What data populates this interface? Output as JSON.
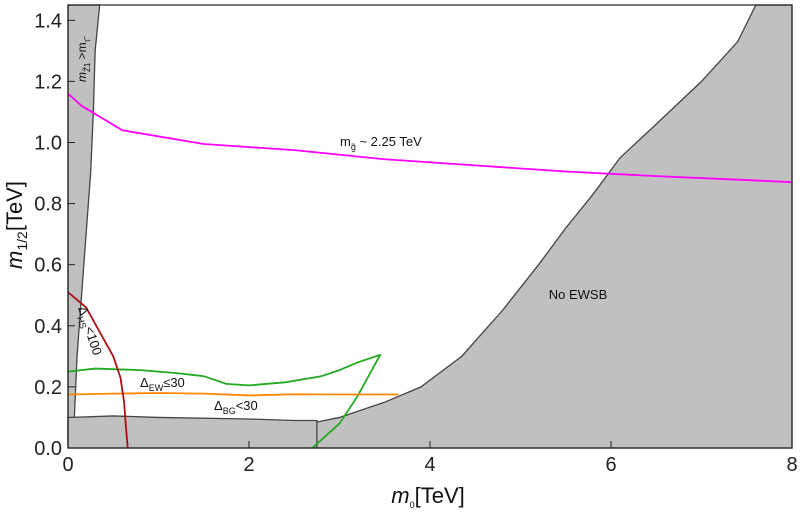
{
  "chart_data": {
    "type": "line",
    "xlabel": "m0[TeV]",
    "ylabel": "m1/2[TeV]",
    "xlim": [
      0,
      8
    ],
    "ylim": [
      0,
      1.45
    ],
    "x_ticks": [
      "0",
      "2",
      "4",
      "6",
      "8"
    ],
    "y_ticks": [
      "0.0",
      "0.2",
      "0.4",
      "0.6",
      "0.8",
      "1.0",
      "1.2",
      "1.4"
    ],
    "grid": false,
    "colors": {
      "excluded": "#c0c0c0",
      "boundary": "#444444",
      "gluino": "#ff00ff",
      "ew": "#22aa22",
      "bg": "#ff8800",
      "hs": "#aa1111"
    },
    "regions": [
      {
        "name": "m_Z1 > m_tau",
        "label": "m̃Z1 > m̃τ",
        "points": [
          [
            0,
            1.45
          ],
          [
            0.35,
            1.45
          ],
          [
            0.3,
            1.3
          ],
          [
            0.28,
            1.1
          ],
          [
            0.25,
            0.9
          ],
          [
            0.2,
            0.7
          ],
          [
            0.15,
            0.5
          ],
          [
            0.1,
            0.3
          ],
          [
            0.07,
            0.1
          ],
          [
            0,
            0
          ]
        ]
      },
      {
        "name": "No EWSB",
        "label": "No EWSB",
        "points": [
          [
            2.75,
            0.085
          ],
          [
            3.0,
            0.1
          ],
          [
            3.5,
            0.15
          ],
          [
            3.9,
            0.2
          ],
          [
            4.35,
            0.3
          ],
          [
            4.8,
            0.45
          ],
          [
            5.2,
            0.6
          ],
          [
            5.5,
            0.72
          ],
          [
            5.8,
            0.83
          ],
          [
            6.1,
            0.95
          ],
          [
            6.5,
            1.06
          ],
          [
            7.0,
            1.2
          ],
          [
            7.4,
            1.33
          ],
          [
            7.6,
            1.45
          ],
          [
            8,
            1.45
          ],
          [
            8,
            0
          ],
          [
            2.75,
            0
          ]
        ]
      },
      {
        "name": "lower band",
        "points": [
          [
            0,
            0
          ],
          [
            0,
            0.1
          ],
          [
            0.5,
            0.105
          ],
          [
            1,
            0.1
          ],
          [
            2,
            0.095
          ],
          [
            2.5,
            0.09
          ],
          [
            2.75,
            0.09
          ],
          [
            2.75,
            0
          ]
        ]
      }
    ],
    "series": [
      {
        "name": "gluino",
        "label": "mg̃ ~ 2.25 TeV",
        "x": [
          0,
          0.15,
          0.6,
          1.5,
          2.5,
          3.5,
          4.5,
          5.5,
          6.5,
          7.5,
          8
        ],
        "y": [
          1.16,
          1.12,
          1.04,
          0.995,
          0.975,
          0.945,
          0.925,
          0.905,
          0.89,
          0.877,
          0.87
        ]
      },
      {
        "name": "Delta_EW",
        "label": "ΔEW≦30",
        "x": [
          0,
          0.3,
          0.8,
          1.2,
          1.5,
          1.75,
          2.0,
          2.4,
          2.8,
          3.0,
          3.2,
          3.35,
          3.45,
          3.2,
          3.0,
          2.7
        ],
        "y": [
          0.25,
          0.26,
          0.255,
          0.245,
          0.235,
          0.21,
          0.205,
          0.215,
          0.235,
          0.255,
          0.28,
          0.295,
          0.305,
          0.17,
          0.08,
          0.0
        ]
      },
      {
        "name": "Delta_BG",
        "label": "ΔBG<30",
        "x": [
          0,
          0.5,
          1.0,
          1.5,
          2.0,
          2.5,
          3.0,
          3.65
        ],
        "y": [
          0.175,
          0.178,
          0.18,
          0.178,
          0.172,
          0.176,
          0.175,
          0.175
        ]
      },
      {
        "name": "Delta_HS",
        "label": "ΔHS<100",
        "x": [
          0,
          0.2,
          0.35,
          0.5,
          0.58,
          0.62,
          0.64,
          0.66
        ],
        "y": [
          0.51,
          0.46,
          0.38,
          0.3,
          0.23,
          0.15,
          0.07,
          0.0
        ]
      }
    ],
    "annotations": [
      "No EWSB",
      "mg̃ ~ 2.25 TeV",
      "ΔEW≦30",
      "ΔBG<30",
      "ΔHS<100"
    ]
  }
}
